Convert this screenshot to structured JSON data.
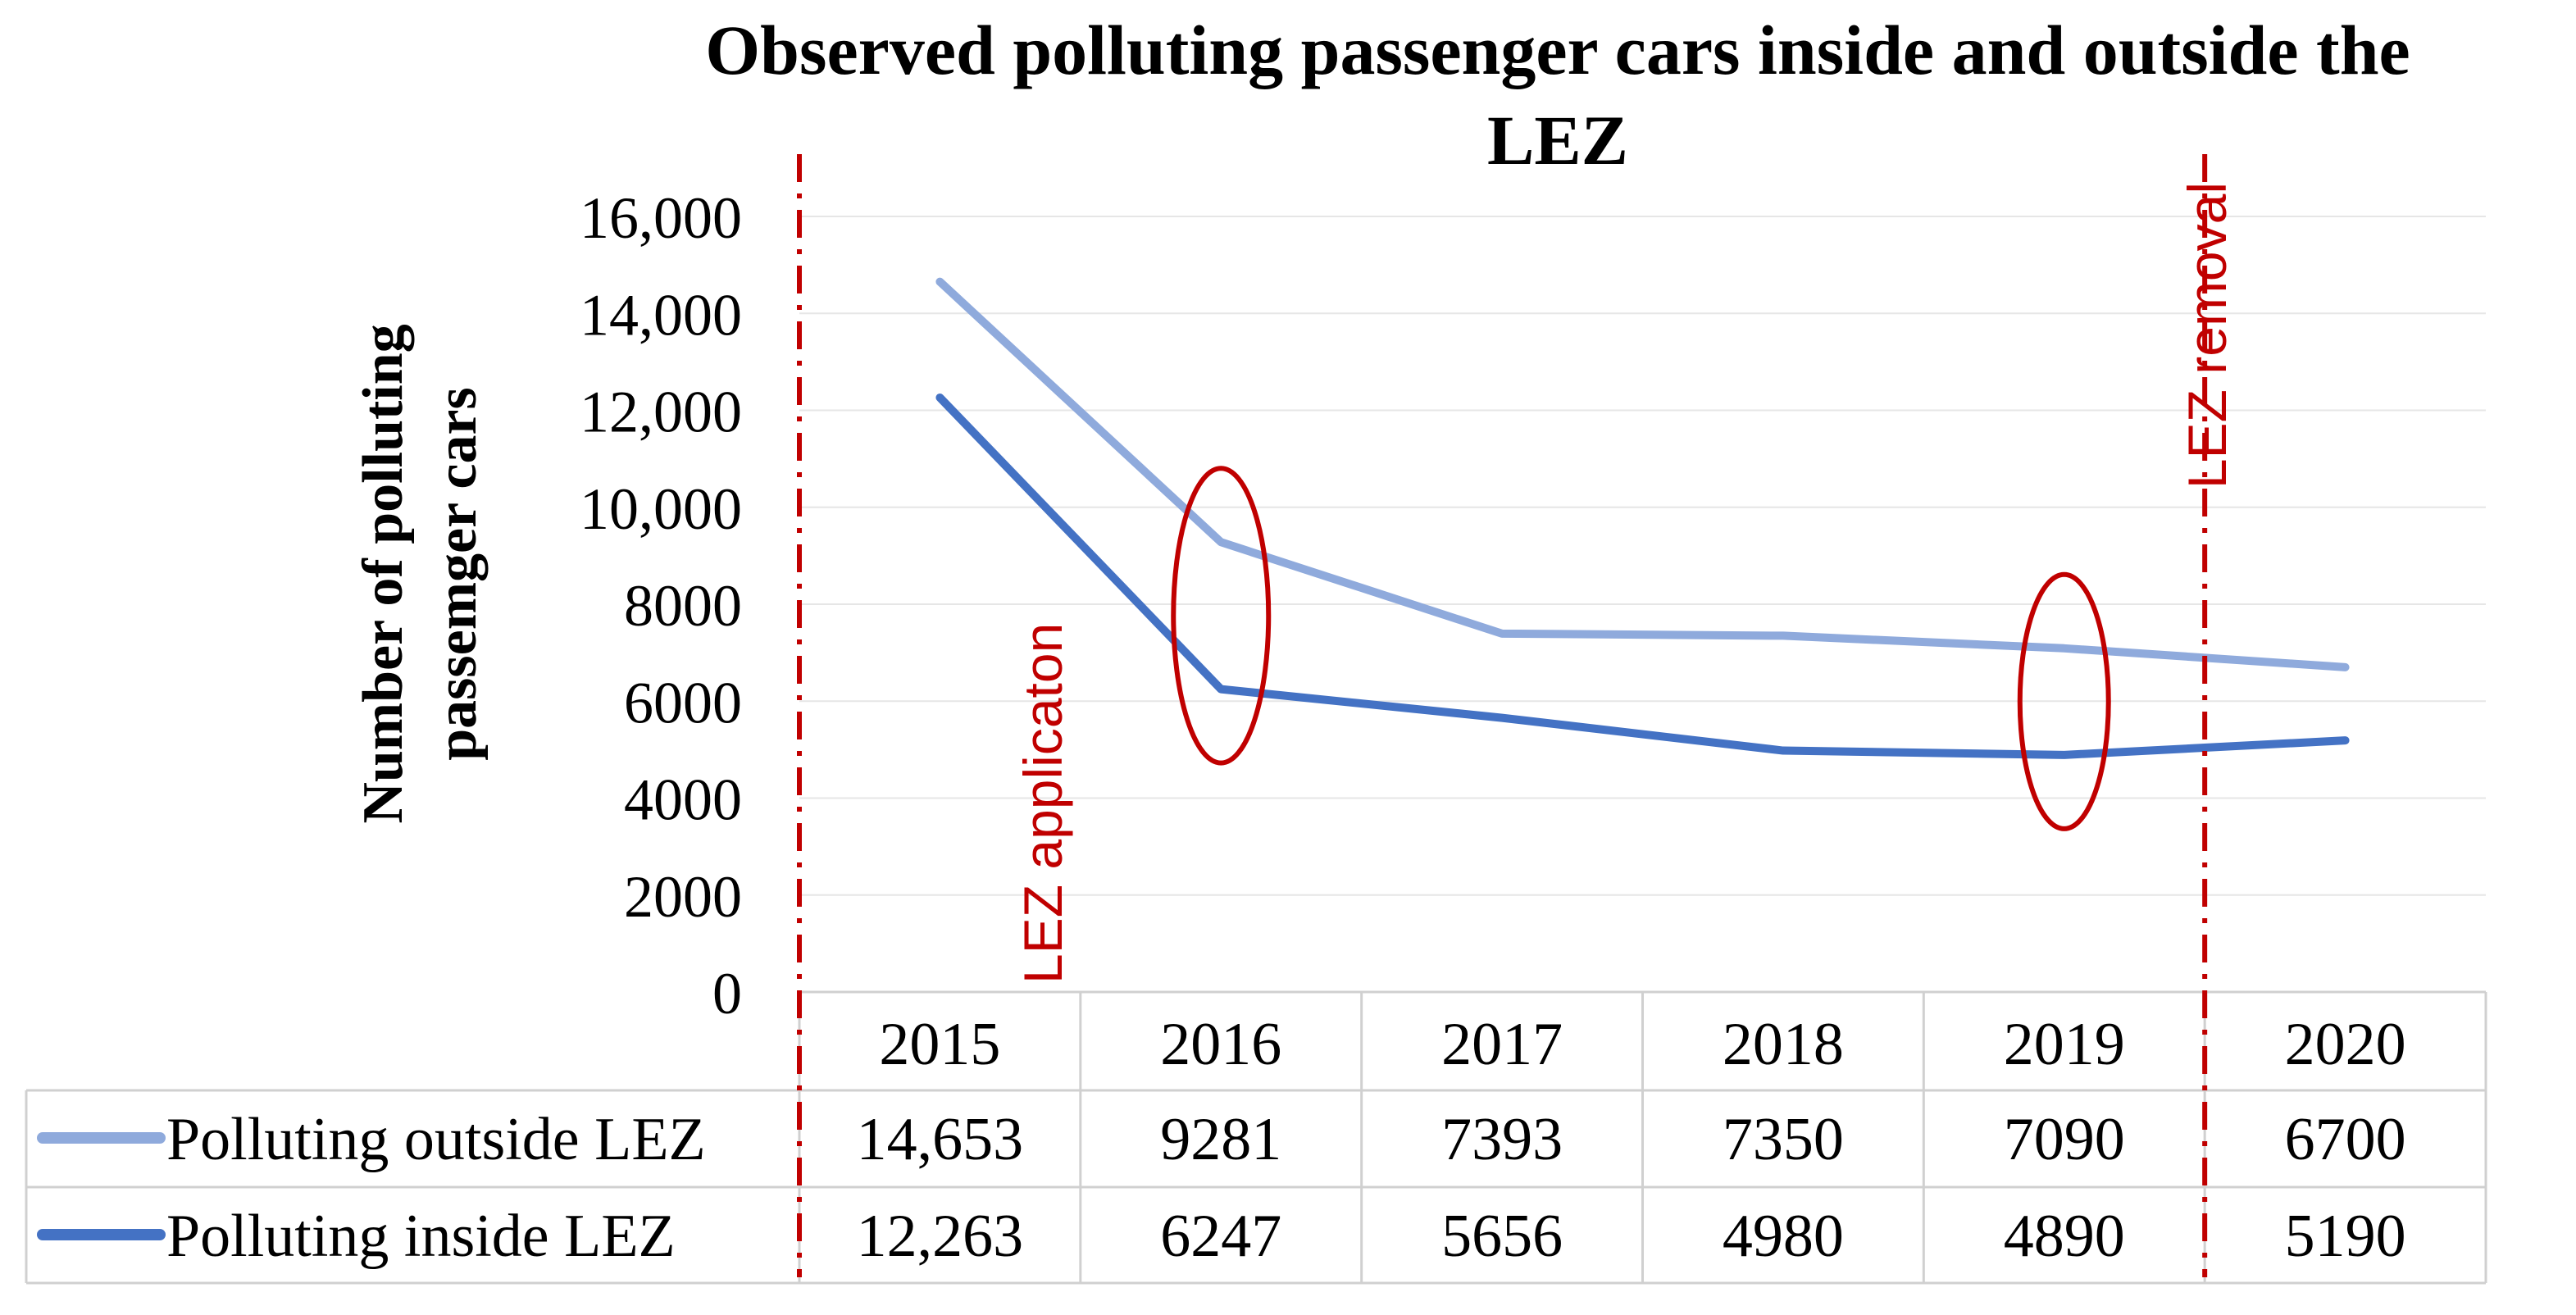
{
  "chart_data": {
    "type": "line",
    "title": "Observed polluting passenger cars inside and outside the LEZ",
    "title_lines": [
      "Observed polluting passenger cars inside and outside the",
      "LEZ"
    ],
    "ylabel": "Number of polluting passemger cars",
    "ylabel_lines": [
      "Number of polluting",
      "passemger cars"
    ],
    "xlabel": "",
    "categories": [
      "2015",
      "2016",
      "2017",
      "2018",
      "2019",
      "2020"
    ],
    "ylim": [
      0,
      16000
    ],
    "yticks": [
      0,
      2000,
      4000,
      6000,
      8000,
      10000,
      12000,
      14000,
      16000
    ],
    "ytick_labels": [
      "0",
      "2000",
      "4000",
      "6000",
      "8000",
      "10,000",
      "12,000",
      "14,000",
      "16,000"
    ],
    "grid": true,
    "legend": "data-table-below",
    "series": [
      {
        "name": "Polluting outside LEZ",
        "values": [
          14653,
          9281,
          7393,
          7350,
          7090,
          6700
        ],
        "value_labels": [
          "14,653",
          "9281",
          "7393",
          "7350",
          "7090",
          "6700"
        ],
        "color": "#8faadc"
      },
      {
        "name": "Polluting inside LEZ",
        "values": [
          12263,
          6247,
          5656,
          4980,
          4890,
          5190
        ],
        "value_labels": [
          "12,263",
          "6247",
          "5656",
          "4980",
          "4890",
          "5190"
        ],
        "color": "#4472c4"
      }
    ],
    "annotations": [
      {
        "label": "LEZ applicaton",
        "position": "between 2015 and 2016",
        "color": "#c00000"
      },
      {
        "label": "LEZ removal",
        "position": "between 2019 and 2020",
        "color": "#c00000"
      }
    ],
    "highlights": [
      {
        "category": "2016",
        "shape": "ellipse",
        "color": "#c00000"
      },
      {
        "category": "2019",
        "shape": "ellipse",
        "color": "#c00000"
      }
    ]
  }
}
